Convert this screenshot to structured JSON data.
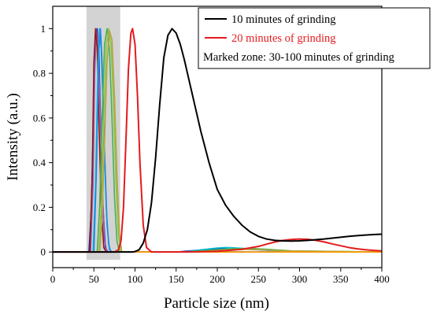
{
  "chart_data": {
    "type": "line",
    "xlabel": "Particle size (nm)",
    "ylabel": "Intensity (a.u.)",
    "xlim": [
      0,
      400
    ],
    "ylim": [
      -0.07,
      1.1
    ],
    "xticks": [
      0,
      50,
      100,
      150,
      200,
      250,
      300,
      350,
      400
    ],
    "yticks": [
      0,
      0.2,
      0.4,
      0.6,
      0.8,
      1
    ],
    "ytick_labels": [
      "0",
      "0.2",
      "0.4",
      "0.6",
      "0.8",
      "1"
    ],
    "grid": false,
    "legend_position": "top-right",
    "shaded_zone": {
      "x_range": [
        41,
        82
      ],
      "color": "#d3d3d3"
    },
    "series": [
      {
        "name": "10 minutes of grinding",
        "color": "#000000",
        "points": [
          [
            0,
            0
          ],
          [
            97,
            0
          ],
          [
            100,
            0.002
          ],
          [
            105,
            0.01
          ],
          [
            110,
            0.04
          ],
          [
            115,
            0.1
          ],
          [
            120,
            0.22
          ],
          [
            125,
            0.42
          ],
          [
            130,
            0.66
          ],
          [
            135,
            0.87
          ],
          [
            140,
            0.97
          ],
          [
            145,
            1.0
          ],
          [
            150,
            0.98
          ],
          [
            155,
            0.93
          ],
          [
            160,
            0.86
          ],
          [
            165,
            0.78
          ],
          [
            170,
            0.7
          ],
          [
            175,
            0.62
          ],
          [
            180,
            0.54
          ],
          [
            185,
            0.47
          ],
          [
            190,
            0.4
          ],
          [
            195,
            0.34
          ],
          [
            200,
            0.28
          ],
          [
            210,
            0.21
          ],
          [
            220,
            0.16
          ],
          [
            230,
            0.12
          ],
          [
            240,
            0.09
          ],
          [
            250,
            0.07
          ],
          [
            260,
            0.058
          ],
          [
            270,
            0.052
          ],
          [
            280,
            0.05
          ],
          [
            290,
            0.049
          ],
          [
            300,
            0.05
          ],
          [
            310,
            0.052
          ],
          [
            320,
            0.055
          ],
          [
            330,
            0.058
          ],
          [
            340,
            0.062
          ],
          [
            350,
            0.066
          ],
          [
            360,
            0.07
          ],
          [
            370,
            0.073
          ],
          [
            380,
            0.076
          ],
          [
            390,
            0.078
          ],
          [
            400,
            0.08
          ]
        ]
      },
      {
        "name": "20 minutes of grinding",
        "color": "#e41a1c",
        "points": [
          [
            0,
            0
          ],
          [
            75,
            0
          ],
          [
            80,
            0.01
          ],
          [
            83,
            0.05
          ],
          [
            86,
            0.2
          ],
          [
            89,
            0.5
          ],
          [
            92,
            0.82
          ],
          [
            95,
            0.98
          ],
          [
            97,
            1.0
          ],
          [
            100,
            0.93
          ],
          [
            103,
            0.7
          ],
          [
            106,
            0.4
          ],
          [
            110,
            0.12
          ],
          [
            114,
            0.02
          ],
          [
            120,
            0
          ],
          [
            160,
            0
          ],
          [
            200,
            0.003
          ],
          [
            230,
            0.012
          ],
          [
            250,
            0.025
          ],
          [
            260,
            0.035
          ],
          [
            270,
            0.045
          ],
          [
            280,
            0.052
          ],
          [
            290,
            0.056
          ],
          [
            300,
            0.058
          ],
          [
            310,
            0.057
          ],
          [
            320,
            0.052
          ],
          [
            330,
            0.045
          ],
          [
            340,
            0.036
          ],
          [
            350,
            0.028
          ],
          [
            360,
            0.02
          ],
          [
            370,
            0.014
          ],
          [
            380,
            0.01
          ],
          [
            390,
            0.007
          ],
          [
            400,
            0.005
          ]
        ]
      },
      {
        "name": "",
        "color": "#1f1fb5",
        "points": [
          [
            0,
            0
          ],
          [
            44,
            0
          ],
          [
            47,
            0.2
          ],
          [
            50,
            0.7
          ],
          [
            52,
            0.95
          ],
          [
            54,
            1.0
          ],
          [
            56,
            0.9
          ],
          [
            58,
            0.6
          ],
          [
            61,
            0.2
          ],
          [
            64,
            0.02
          ],
          [
            67,
            0
          ],
          [
            150,
            0
          ],
          [
            170,
            0.006
          ],
          [
            190,
            0.012
          ],
          [
            210,
            0.014
          ],
          [
            230,
            0.013
          ],
          [
            250,
            0.01
          ],
          [
            270,
            0.006
          ],
          [
            300,
            0.003
          ],
          [
            400,
            0
          ]
        ]
      },
      {
        "name": "",
        "color": "#9b59b6",
        "points": [
          [
            0,
            0
          ],
          [
            46,
            0
          ],
          [
            49,
            0.3
          ],
          [
            51,
            0.8
          ],
          [
            53,
            0.99
          ],
          [
            55,
            0.95
          ],
          [
            57,
            0.7
          ],
          [
            60,
            0.3
          ],
          [
            63,
            0.05
          ],
          [
            66,
            0
          ],
          [
            400,
            0
          ]
        ]
      },
      {
        "name": "",
        "color": "#8b1a1a",
        "points": [
          [
            0,
            0
          ],
          [
            45,
            0
          ],
          [
            48,
            0.35
          ],
          [
            50,
            0.85
          ],
          [
            52,
            1.0
          ],
          [
            54,
            0.92
          ],
          [
            56,
            0.6
          ],
          [
            59,
            0.2
          ],
          [
            62,
            0.02
          ],
          [
            65,
            0
          ],
          [
            400,
            0
          ]
        ]
      },
      {
        "name": "",
        "color": "#00bcd4",
        "points": [
          [
            0,
            0
          ],
          [
            49,
            0
          ],
          [
            52,
            0.3
          ],
          [
            55,
            0.85
          ],
          [
            57,
            1.0
          ],
          [
            59,
            0.9
          ],
          [
            62,
            0.55
          ],
          [
            65,
            0.2
          ],
          [
            68,
            0.03
          ],
          [
            71,
            0
          ],
          [
            160,
            0
          ],
          [
            180,
            0.01
          ],
          [
            200,
            0.018
          ],
          [
            210,
            0.02
          ],
          [
            220,
            0.019
          ],
          [
            240,
            0.014
          ],
          [
            260,
            0.008
          ],
          [
            290,
            0.003
          ],
          [
            400,
            0
          ]
        ]
      },
      {
        "name": "",
        "color": "#1e88e5",
        "points": [
          [
            0,
            0
          ],
          [
            50,
            0
          ],
          [
            53,
            0.35
          ],
          [
            56,
            0.9
          ],
          [
            58,
            1.0
          ],
          [
            60,
            0.85
          ],
          [
            63,
            0.45
          ],
          [
            66,
            0.12
          ],
          [
            69,
            0.01
          ],
          [
            72,
            0
          ],
          [
            400,
            0
          ]
        ]
      },
      {
        "name": "",
        "color": "#4caf50",
        "points": [
          [
            0,
            0
          ],
          [
            54,
            0
          ],
          [
            57,
            0.2
          ],
          [
            60,
            0.6
          ],
          [
            63,
            0.93
          ],
          [
            66,
            1.0
          ],
          [
            69,
            0.9
          ],
          [
            72,
            0.6
          ],
          [
            75,
            0.25
          ],
          [
            78,
            0.05
          ],
          [
            81,
            0
          ],
          [
            160,
            0
          ],
          [
            190,
            0.008
          ],
          [
            220,
            0.015
          ],
          [
            240,
            0.016
          ],
          [
            260,
            0.012
          ],
          [
            290,
            0.005
          ],
          [
            400,
            0
          ]
        ]
      },
      {
        "name": "",
        "color": "#8bc34a",
        "points": [
          [
            0,
            0
          ],
          [
            56,
            0
          ],
          [
            59,
            0.2
          ],
          [
            62,
            0.6
          ],
          [
            65,
            0.92
          ],
          [
            68,
            1.0
          ],
          [
            71,
            0.92
          ],
          [
            74,
            0.65
          ],
          [
            77,
            0.3
          ],
          [
            80,
            0.07
          ],
          [
            83,
            0
          ],
          [
            400,
            0
          ]
        ]
      },
      {
        "name": "",
        "color": "#b5a642",
        "points": [
          [
            0,
            0
          ],
          [
            57,
            0
          ],
          [
            60,
            0.15
          ],
          [
            63,
            0.5
          ],
          [
            66,
            0.85
          ],
          [
            69,
            0.99
          ],
          [
            72,
            0.95
          ],
          [
            75,
            0.7
          ],
          [
            78,
            0.35
          ],
          [
            81,
            0.08
          ],
          [
            84,
            0
          ],
          [
            170,
            0
          ],
          [
            200,
            0.006
          ],
          [
            230,
            0.012
          ],
          [
            250,
            0.011
          ],
          [
            280,
            0.005
          ],
          [
            400,
            0
          ]
        ]
      },
      {
        "name": "",
        "color": "#ff9800",
        "points": [
          [
            0,
            0
          ],
          [
            400,
            0
          ]
        ]
      }
    ],
    "legend_entries": [
      {
        "text": "10 minutes of grinding",
        "color": "#000000",
        "line": true
      },
      {
        "text": "20 minutes of grinding",
        "color": "#e41a1c",
        "line": true
      },
      {
        "text": "Marked zone: 30-100 minutes of grinding",
        "color": "#000000",
        "line": false
      }
    ]
  }
}
